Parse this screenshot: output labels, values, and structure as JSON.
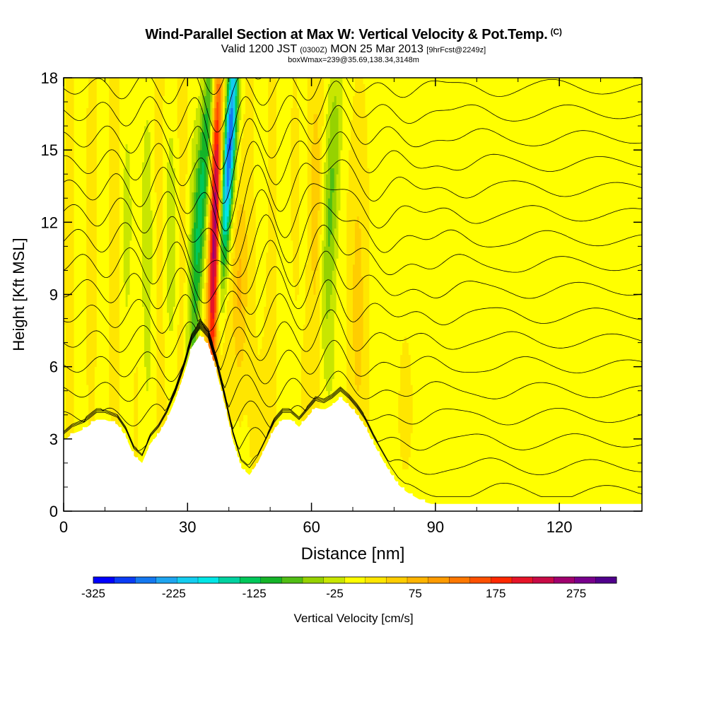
{
  "header": {
    "title": "Wind-Parallel Section at Max W: Vertical Velocity & Pot.Temp.",
    "copyright": "(C)",
    "valid_a": "Valid 1200 JST",
    "valid_b": "(0300Z)",
    "valid_c": "MON 25 Mar 2013",
    "valid_d": "[9hrFcst@2249z]",
    "boxline": "boxWmax=239@35.69,138.34,3148m"
  },
  "chart_data": {
    "type": "heatmap",
    "xlabel": "Distance [nm]",
    "ylabel": "Height [Kft MSL]",
    "xlim": [
      0,
      140
    ],
    "ylim": [
      0,
      18
    ],
    "x_ticks": [
      0,
      30,
      60,
      90,
      120
    ],
    "y_ticks": [
      0,
      3,
      6,
      9,
      12,
      15,
      18
    ],
    "colorbar": {
      "label": "Vertical Velocity [cm/s]",
      "range": [
        -325,
        325
      ],
      "tick_values": [
        -325,
        -225,
        -125,
        -25,
        75,
        175,
        275
      ],
      "tick_labels": [
        "-325",
        "-225",
        "-125",
        "-25",
        "75",
        "175",
        "275"
      ],
      "colors": [
        "#0000ff",
        "#0a3cf5",
        "#1478f0",
        "#1ea5f0",
        "#14cdf0",
        "#00e6e6",
        "#00d2a0",
        "#00c85a",
        "#14b428",
        "#50be14",
        "#96d200",
        "#c8e600",
        "#ffff00",
        "#ffe600",
        "#ffcd00",
        "#ffb400",
        "#ff9b00",
        "#ff7800",
        "#ff5000",
        "#ff2800",
        "#e61428",
        "#c80a46",
        "#a0006e",
        "#78008c",
        "#50008c"
      ]
    },
    "terrain": {
      "x": [
        0,
        2,
        5,
        8,
        10,
        13,
        15,
        17,
        19,
        21,
        23,
        25,
        27,
        29,
        31,
        33,
        35,
        37,
        39,
        41,
        43,
        45,
        47,
        49,
        51,
        53,
        55,
        57,
        59,
        61,
        63,
        65,
        67,
        69,
        71,
        73,
        75,
        77,
        79,
        81,
        83,
        85,
        87,
        89,
        91,
        93,
        95,
        100,
        110,
        120,
        130,
        140
      ],
      "h": [
        2.9,
        3.2,
        3.4,
        3.8,
        3.8,
        3.6,
        3.1,
        2.3,
        2.0,
        2.8,
        3.2,
        3.8,
        4.6,
        5.6,
        6.8,
        7.3,
        6.9,
        5.8,
        4.4,
        2.9,
        1.8,
        1.5,
        2.0,
        2.7,
        3.4,
        3.8,
        3.8,
        3.5,
        3.9,
        4.3,
        4.2,
        4.4,
        4.7,
        4.4,
        4.0,
        3.5,
        2.8,
        2.2,
        1.6,
        1.1,
        0.8,
        0.6,
        0.4,
        0.3,
        0.3,
        0.3,
        0.3,
        0.3,
        0.3,
        0.3,
        0.3,
        0.3
      ]
    },
    "w_features": [
      {
        "x": 14,
        "z": 12,
        "w": 6,
        "note": "alternating updraft/downdraft bands"
      },
      {
        "x": 33,
        "z": 14,
        "w": -150,
        "note": "downdraft band"
      },
      {
        "x": 36.5,
        "z": 12,
        "w": 275,
        "note": "strong updraft"
      },
      {
        "x": 40,
        "z": 15,
        "w": -300,
        "note": "strong downdraft"
      },
      {
        "x": 64,
        "z": 13,
        "w": -75,
        "note": "downdraft band"
      },
      {
        "x": 100,
        "z": 10,
        "w": 0,
        "note": "weak flow downstream"
      }
    ],
    "theta_contours": {
      "label": "Potential temperature (contour lines)",
      "levels_count": 18
    }
  }
}
